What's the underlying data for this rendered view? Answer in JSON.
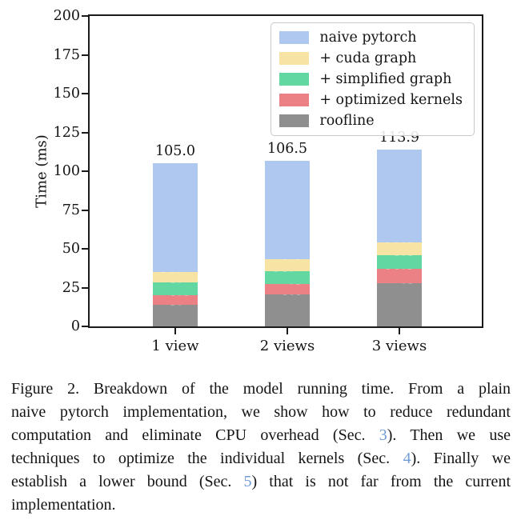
{
  "page": {
    "background": "#ffffff"
  },
  "chart_data": {
    "type": "bar",
    "stacked": true,
    "title": "",
    "categories": [
      "1 view",
      "2 views",
      "3 views"
    ],
    "xlabel": "",
    "ylabel": "Time (ms)",
    "ylim": [
      0,
      200
    ],
    "yticks": [
      0,
      25,
      50,
      75,
      100,
      125,
      150,
      175,
      200
    ],
    "grid": false,
    "series": [
      {
        "name": "roofline",
        "color": "#8f8f8f",
        "cumulative_ms": [
          13.7,
          20.6,
          27.6
        ]
      },
      {
        "name": "+ optimized kernels",
        "color": "#eb8184",
        "cumulative_ms": [
          20.0,
          27.3,
          36.9
        ]
      },
      {
        "name": "+ simplified graph",
        "color": "#63d7a2",
        "cumulative_ms": [
          28.2,
          35.7,
          45.8
        ]
      },
      {
        "name": "+ cuda graph",
        "color": "#f7e3a3",
        "cumulative_ms": [
          35.2,
          43.5,
          53.9
        ]
      },
      {
        "name": "naive pytorch",
        "color": "#aec8f0",
        "cumulative_ms": [
          105.0,
          106.5,
          113.9
        ]
      }
    ],
    "bar_totals": [
      105.0,
      106.5,
      113.9
    ],
    "legend": {
      "position": "upper right",
      "entries": [
        "naive pytorch",
        "+ cuda graph",
        "+ simplified graph",
        "+ optimized kernels",
        "roofline"
      ]
    }
  },
  "caption": {
    "link_color": "#6f9cd6",
    "lines": [
      [
        {
          "text": "Figure 2. Breakdown of the model running time. From a plain"
        }
      ],
      [
        {
          "text": "naive pytorch implementation, we show how to reduce redundant"
        }
      ],
      [
        {
          "text": "computation and eliminate CPU overhead (Sec. "
        },
        {
          "text": "3",
          "ref": true
        },
        {
          "text": "). Then we use"
        }
      ],
      [
        {
          "text": "techniques to optimize the individual kernels (Sec. "
        },
        {
          "text": "4",
          "ref": true
        },
        {
          "text": "). Finally we"
        }
      ],
      [
        {
          "text": "establish a lower bound (Sec. "
        },
        {
          "text": "5",
          "ref": true
        },
        {
          "text": ") that is not far from the current"
        }
      ],
      [
        {
          "text": "implementation."
        }
      ]
    ]
  }
}
